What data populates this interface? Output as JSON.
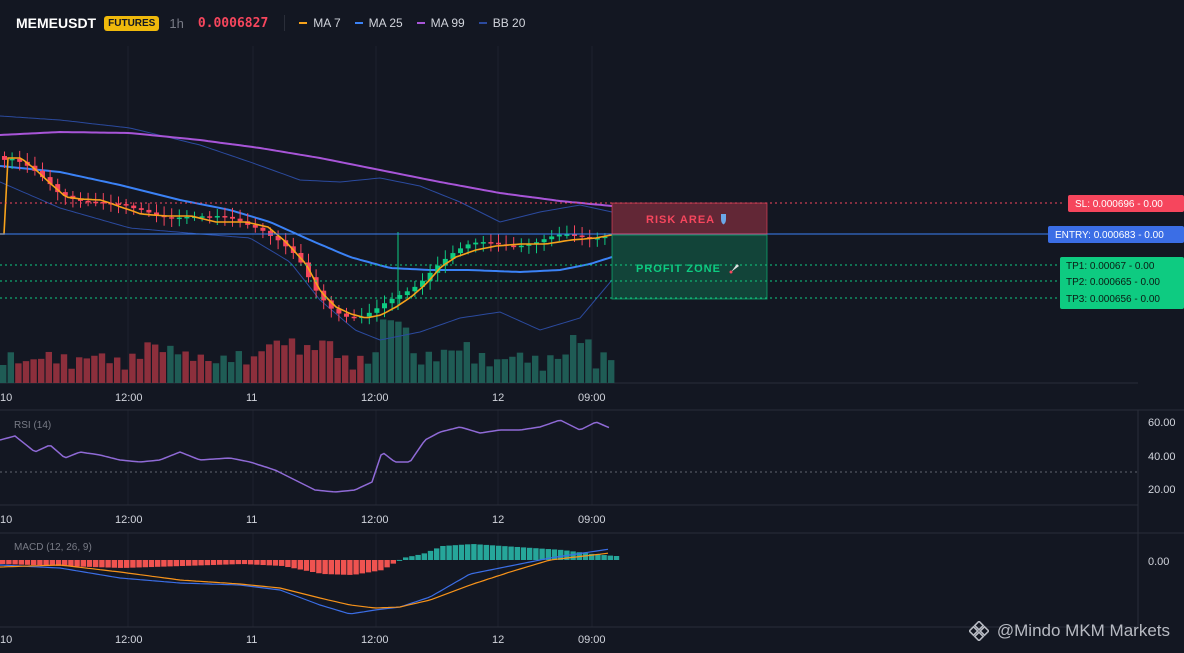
{
  "header": {
    "symbol": "MEMEUSDT",
    "badge": "FUTURES",
    "interval": "1h",
    "price": "0.0006827",
    "indicators": [
      {
        "label": "MA 7",
        "color": "#f7a21b"
      },
      {
        "label": "MA 25",
        "color": "#3b82f6"
      },
      {
        "label": "MA 99",
        "color": "#a855d8"
      },
      {
        "label": "BB 20",
        "color": "#2b4a9e"
      }
    ]
  },
  "price_levels": {
    "sl": "SL: 0.000696 - 0.00",
    "entry": "ENTRY: 0.000683 - 0.00",
    "tp1": "TP1: 0.00067 - 0.00",
    "tp2": "TP2: 0.000665 - 0.00",
    "tp3": "TP3: 0.000656 - 0.00"
  },
  "zones": {
    "risk": "RISK AREA",
    "profit": "PROFIT ZONE"
  },
  "time_axis": [
    "10",
    "12:00",
    "11",
    "12:00",
    "12",
    "09:00"
  ],
  "rsi": {
    "label": "RSI (14)",
    "ticks": [
      "60.00",
      "40.00",
      "20.00"
    ]
  },
  "macd": {
    "label": "MACD (12, 26, 9)",
    "ticks": [
      "0.00"
    ]
  },
  "watermark": "@Mindo MKM Markets",
  "colors": {
    "up": "#0ecb81",
    "down": "#f6465d",
    "background": "#131722",
    "ma7": "#f7a21b",
    "ma25": "#3b82f6",
    "ma99": "#a855d8",
    "bb": "#2b4a9e",
    "rsi": "#8f6ad6",
    "macd": "#3b6ee6",
    "signal": "#f7931a"
  }
}
